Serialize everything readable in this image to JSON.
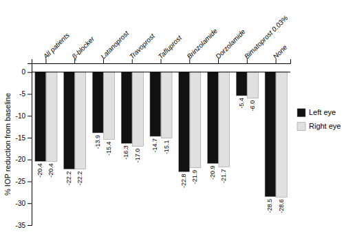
{
  "chart_data": {
    "type": "bar",
    "categories": [
      "All patients",
      "β-blocker",
      "Latanoprost",
      "Travoprost",
      "Tafluprost",
      "Brinzolamide",
      "Dorzolamide",
      "Bimatoprost 0.03%",
      "None"
    ],
    "series": [
      {
        "name": "Left eye",
        "color": "#111111",
        "values": [
          -20.4,
          -22.2,
          -13.9,
          -16.3,
          -14.7,
          -22.8,
          -20.9,
          -5.4,
          -28.5
        ],
        "value_labels": [
          "-20.4",
          "-22.2",
          "-13.9",
          "-16.3",
          "-14.7",
          "-22.8",
          "-20.9",
          "-5.4",
          "-28.5"
        ]
      },
      {
        "name": "Right eye",
        "color": "#e0e0e0",
        "values": [
          -20.4,
          -22.2,
          -15.4,
          -17.0,
          -15.1,
          -21.9,
          -21.7,
          -6.0,
          -28.6
        ],
        "value_labels": [
          "-20.4",
          "-22.2",
          "-15.4",
          "-17.0",
          "-15.1",
          "-21.9",
          "-21.7",
          "-6.0",
          "-28.6"
        ]
      }
    ],
    "ylabel": "% IOP reduction from baseline",
    "ylim": [
      -35,
      2
    ],
    "yticks": [
      0,
      -5,
      -10,
      -15,
      -20,
      -25,
      -30,
      -35
    ],
    "data_labels": true,
    "legend": "right"
  }
}
